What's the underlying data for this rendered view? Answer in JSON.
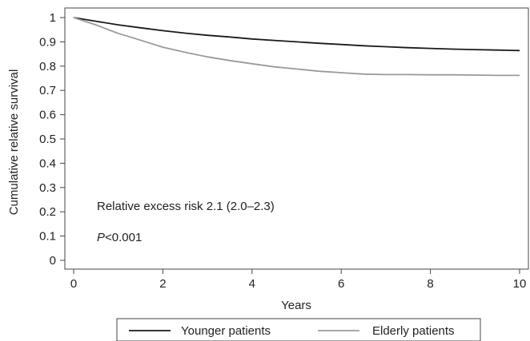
{
  "chart_data": {
    "type": "line",
    "title": "",
    "xlabel": "Years",
    "ylabel": "Cumulative relative survival",
    "xlim": [
      0,
      10
    ],
    "ylim": [
      0,
      1
    ],
    "xticks": [
      0,
      2,
      4,
      6,
      8,
      10
    ],
    "yticks": [
      0,
      0.1,
      0.2,
      0.3,
      0.4,
      0.5,
      0.6,
      0.7,
      0.8,
      0.9,
      1
    ],
    "x_tick_labels": [
      "0",
      "2",
      "4",
      "6",
      "8",
      "10"
    ],
    "y_tick_labels": [
      "0",
      "0.1",
      "0.2",
      "0.3",
      "0.4",
      "0.5",
      "0.6",
      "0.7",
      "0.8",
      "0.9",
      "1"
    ],
    "grid": false,
    "legend_position": "bottom",
    "annotations": {
      "risk": "Relative excess risk 2.1 (2.0–2.3)",
      "p_prefix": "P",
      "p_value": "<0.001"
    },
    "series": [
      {
        "name": "Younger patients",
        "color": "#1a1a1a",
        "x": [
          0,
          0.5,
          1,
          1.5,
          2,
          2.5,
          3,
          3.5,
          4,
          4.5,
          5,
          5.5,
          6,
          6.5,
          7,
          7.5,
          8,
          8.5,
          9,
          9.5,
          10
        ],
        "y": [
          1.0,
          0.985,
          0.97,
          0.958,
          0.946,
          0.936,
          0.927,
          0.92,
          0.912,
          0.906,
          0.9,
          0.894,
          0.889,
          0.884,
          0.88,
          0.876,
          0.873,
          0.87,
          0.868,
          0.866,
          0.864
        ]
      },
      {
        "name": "Elderly patients",
        "color": "#9a9a9a",
        "x": [
          0,
          0.25,
          0.5,
          0.75,
          1,
          1.5,
          2,
          2.5,
          3,
          3.5,
          4,
          4.5,
          5,
          5.5,
          6,
          6.5,
          7,
          7.5,
          8,
          8.5,
          9,
          9.5,
          10
        ],
        "y": [
          1.0,
          0.985,
          0.97,
          0.952,
          0.935,
          0.907,
          0.878,
          0.857,
          0.838,
          0.823,
          0.81,
          0.797,
          0.788,
          0.779,
          0.773,
          0.767,
          0.765,
          0.765,
          0.764,
          0.764,
          0.763,
          0.762,
          0.762
        ]
      }
    ]
  }
}
